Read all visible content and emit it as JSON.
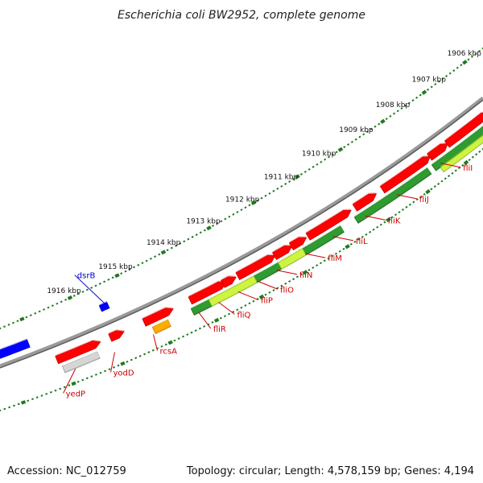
{
  "title": "Escherichia coli BW2952, complete genome",
  "accession_line": "Accession: NC_012759",
  "summary_line": "Topology: circular; Length: 4,578,159 bp; Genes: 4,194",
  "colors": {
    "forward_gene": "#ff0000",
    "reverse_gene": "#0000ff",
    "label_red": "#cc0000",
    "label_blue": "#0000cc",
    "backbone": "#777777",
    "dark_green": "#2b8a2b",
    "light_green": "#b8ee3a",
    "orange": "#ff9a00",
    "gray_feature": "#c0c0c0",
    "tick_green": "#1f7a1f"
  },
  "scale_ticks": [
    {
      "label": "1906 kbp"
    },
    {
      "label": "1907 kbp"
    },
    {
      "label": "1908 kbp"
    },
    {
      "label": "1909 kbp"
    },
    {
      "label": "1910 kbp"
    },
    {
      "label": "1911 kbp"
    },
    {
      "label": "1912 kbp"
    },
    {
      "label": "1913 kbp"
    },
    {
      "label": "1914 kbp"
    },
    {
      "label": "1915 kbp"
    },
    {
      "label": "1916 kbp"
    }
  ],
  "gene_labels": [
    {
      "name": "dsrB",
      "strand": "reverse"
    },
    {
      "name": "yedP",
      "strand": "forward"
    },
    {
      "name": "yodD",
      "strand": "forward"
    },
    {
      "name": "rcsA",
      "strand": "forward"
    },
    {
      "name": "fliR",
      "strand": "forward"
    },
    {
      "name": "fliQ",
      "strand": "forward"
    },
    {
      "name": "fliP",
      "strand": "forward"
    },
    {
      "name": "fliO",
      "strand": "forward"
    },
    {
      "name": "fliN",
      "strand": "forward"
    },
    {
      "name": "fliM",
      "strand": "forward"
    },
    {
      "name": "fliL",
      "strand": "forward"
    },
    {
      "name": "fliK",
      "strand": "forward"
    },
    {
      "name": "fliJ",
      "strand": "forward"
    },
    {
      "name": "fliI",
      "strand": "forward"
    }
  ]
}
